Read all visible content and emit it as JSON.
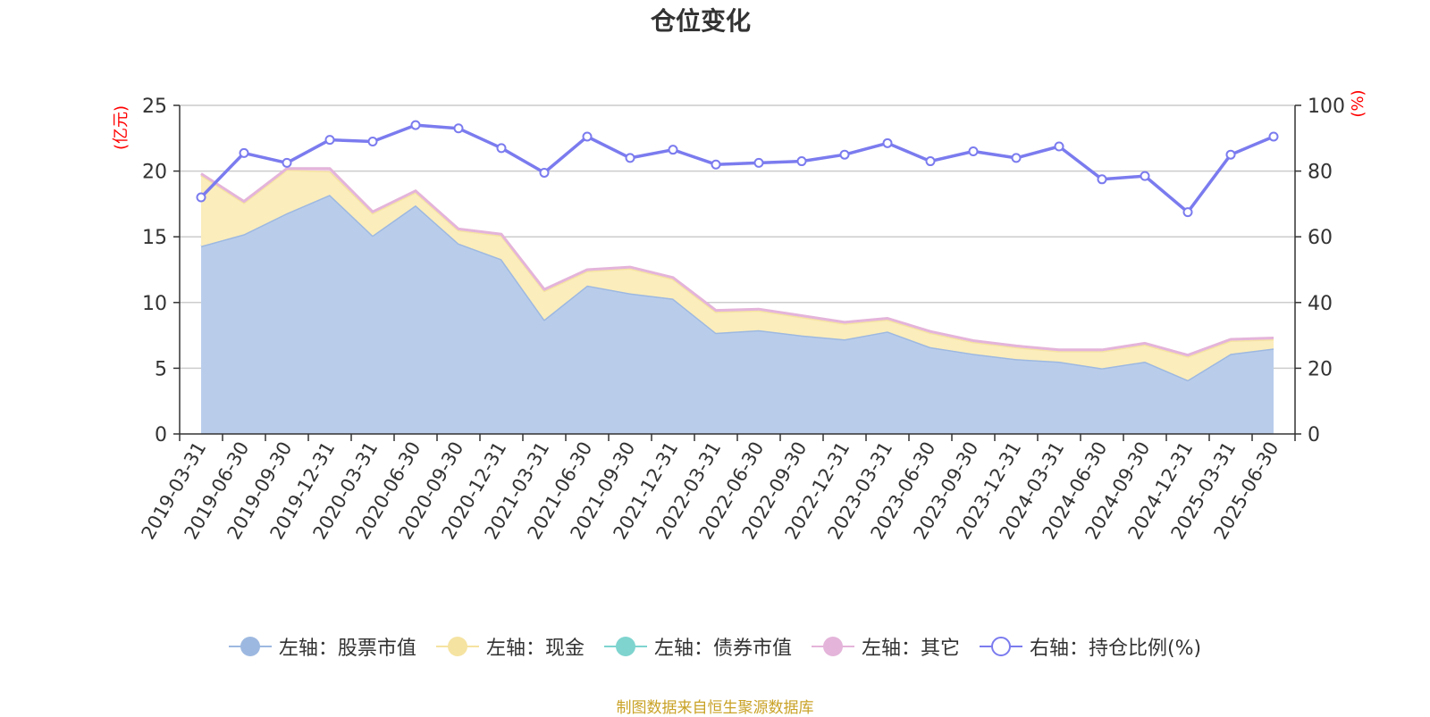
{
  "chart_data": {
    "type": "area",
    "title": "仓位变化",
    "left_axis_unit": "(亿元)",
    "right_axis_unit": "(%)",
    "ylim_left": [
      0,
      25
    ],
    "yticks_left": [
      0,
      5,
      10,
      15,
      20,
      25
    ],
    "ylim_right": [
      0,
      100
    ],
    "yticks_right": [
      0,
      20,
      40,
      60,
      80,
      100
    ],
    "grid": true,
    "legend_position": "bottom-center",
    "categories": [
      "2019-03-31",
      "2019-06-30",
      "2019-09-30",
      "2019-12-31",
      "2020-03-31",
      "2020-06-30",
      "2020-09-30",
      "2020-12-31",
      "2021-03-31",
      "2021-06-30",
      "2021-09-30",
      "2021-12-31",
      "2022-03-31",
      "2022-06-30",
      "2022-09-30",
      "2022-12-31",
      "2023-03-31",
      "2023-06-30",
      "2023-09-30",
      "2023-12-31",
      "2024-03-31",
      "2024-06-30",
      "2024-09-30",
      "2024-12-31",
      "2025-03-31",
      "2025-06-30"
    ],
    "series": [
      {
        "name": "左轴：股票市值",
        "axis": "left",
        "color": "#9db8e0",
        "fill": "#b9cdeb",
        "values": [
          14.3,
          15.2,
          16.8,
          18.2,
          15.1,
          17.4,
          14.5,
          13.3,
          8.7,
          11.3,
          10.7,
          10.3,
          7.7,
          7.9,
          7.5,
          7.2,
          7.8,
          6.6,
          6.1,
          5.7,
          5.5,
          5.0,
          5.5,
          4.1,
          6.1,
          6.5
        ]
      },
      {
        "name": "左轴：现金",
        "axis": "left",
        "color": "#f5e3a1",
        "fill": "#fbedbc",
        "values": [
          5.4,
          2.4,
          3.3,
          1.8,
          1.7,
          1.0,
          1.0,
          1.8,
          2.2,
          1.1,
          1.9,
          1.5,
          1.6,
          1.5,
          1.4,
          1.2,
          0.9,
          1.1,
          0.9,
          0.9,
          0.8,
          1.3,
          1.3,
          1.8,
          1.0,
          0.7
        ]
      },
      {
        "name": "左轴：债券市值",
        "axis": "left",
        "color": "#7fd4cf",
        "fill": "#a7e3df",
        "values": [
          0,
          0,
          0,
          0,
          0,
          0,
          0,
          0,
          0,
          0,
          0,
          0,
          0,
          0,
          0,
          0,
          0,
          0,
          0,
          0,
          0,
          0,
          0,
          0,
          0,
          0
        ]
      },
      {
        "name": "左轴：其它",
        "axis": "left",
        "color": "#e4b4da",
        "fill": "#f0cfe8",
        "values": [
          0.1,
          0.1,
          0.1,
          0.2,
          0.1,
          0.1,
          0.1,
          0.1,
          0.1,
          0.1,
          0.1,
          0.1,
          0.1,
          0.1,
          0.1,
          0.1,
          0.1,
          0.1,
          0.1,
          0.1,
          0.1,
          0.1,
          0.1,
          0.1,
          0.1,
          0.1
        ]
      },
      {
        "name": "右轴：持仓比例(%)",
        "axis": "right",
        "color": "#7b7bef",
        "values": [
          72,
          85.5,
          82.5,
          89.5,
          89,
          94,
          93,
          87,
          79.5,
          90.5,
          84,
          86.5,
          82,
          82.5,
          83,
          85,
          88.5,
          83,
          86,
          84,
          87.5,
          77.5,
          78.5,
          67.5,
          85,
          90.5
        ]
      }
    ]
  },
  "footer": {
    "source": "制图数据来自恒生聚源数据库"
  }
}
